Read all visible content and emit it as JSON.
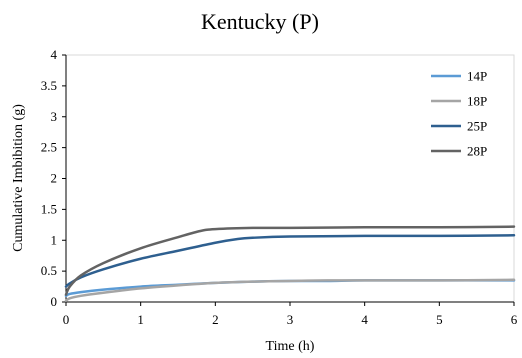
{
  "chart_data": {
    "type": "line",
    "title": "Kentucky  (P)",
    "xlabel": "Time (h)",
    "ylabel": "Cumulative Imbibition (g)",
    "xlim": [
      0,
      6
    ],
    "ylim": [
      0,
      4
    ],
    "x_ticks": [
      "0",
      "1",
      "2",
      "3",
      "4",
      "5",
      "6"
    ],
    "y_ticks": [
      "0",
      "0.5",
      "1",
      "1.5",
      "2",
      "2.5",
      "3",
      "3.5",
      "4"
    ],
    "grid": false,
    "legend_position": "top-right",
    "series": [
      {
        "name": "14P",
        "color": "#5b9bd5",
        "x": [
          0,
          0.05,
          0.2,
          0.5,
          1,
          1.5,
          2,
          2.5,
          3,
          3.5,
          4,
          5,
          6
        ],
        "y": [
          0.1,
          0.13,
          0.16,
          0.2,
          0.25,
          0.28,
          0.31,
          0.33,
          0.34,
          0.34,
          0.35,
          0.35,
          0.35
        ]
      },
      {
        "name": "18P",
        "color": "#a5a5a5",
        "x": [
          0,
          0.05,
          0.2,
          0.5,
          1,
          1.5,
          2,
          2.5,
          3,
          3.5,
          4,
          5,
          6
        ],
        "y": [
          0.02,
          0.06,
          0.1,
          0.15,
          0.22,
          0.27,
          0.31,
          0.33,
          0.34,
          0.35,
          0.35,
          0.35,
          0.36
        ]
      },
      {
        "name": "25P",
        "color": "#2e5f8f",
        "x": [
          0,
          0.05,
          0.2,
          0.5,
          1,
          1.5,
          2,
          2.3,
          2.5,
          3,
          4,
          5,
          6
        ],
        "y": [
          0.25,
          0.3,
          0.4,
          0.53,
          0.7,
          0.83,
          0.96,
          1.02,
          1.04,
          1.06,
          1.07,
          1.07,
          1.08
        ]
      },
      {
        "name": "28P",
        "color": "#636363",
        "x": [
          0,
          0.05,
          0.2,
          0.5,
          1,
          1.5,
          1.8,
          2,
          2.5,
          3,
          4,
          5,
          6
        ],
        "y": [
          0.12,
          0.25,
          0.43,
          0.63,
          0.87,
          1.05,
          1.15,
          1.18,
          1.2,
          1.2,
          1.21,
          1.21,
          1.22
        ]
      }
    ]
  }
}
